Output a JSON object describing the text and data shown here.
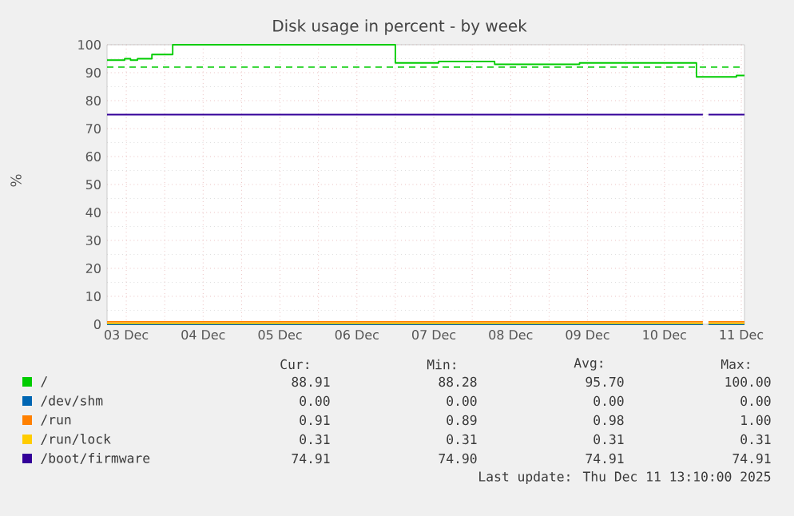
{
  "chart_data": {
    "type": "step",
    "title": "Disk usage in percent - by week",
    "ylabel": "%",
    "xlim": [
      "2025-12-03T06:00",
      "2025-12-11T13:00"
    ],
    "xticks": [
      {
        "value": "2025-12-03T12:00",
        "label": "03 Dec"
      },
      {
        "value": "2025-12-04T00:00",
        "label": null
      },
      {
        "value": "2025-12-04T12:00",
        "label": "04 Dec"
      },
      {
        "value": "2025-12-05T00:00",
        "label": null
      },
      {
        "value": "2025-12-05T12:00",
        "label": "05 Dec"
      },
      {
        "value": "2025-12-06T00:00",
        "label": null
      },
      {
        "value": "2025-12-06T12:00",
        "label": "06 Dec"
      },
      {
        "value": "2025-12-07T00:00",
        "label": null
      },
      {
        "value": "2025-12-07T12:00",
        "label": "07 Dec"
      },
      {
        "value": "2025-12-08T00:00",
        "label": null
      },
      {
        "value": "2025-12-08T12:00",
        "label": "08 Dec"
      },
      {
        "value": "2025-12-09T00:00",
        "label": null
      },
      {
        "value": "2025-12-09T12:00",
        "label": "09 Dec"
      },
      {
        "value": "2025-12-10T00:00",
        "label": null
      },
      {
        "value": "2025-12-10T12:00",
        "label": "10 Dec"
      },
      {
        "value": "2025-12-11T00:00",
        "label": null
      },
      {
        "value": "2025-12-11T12:00",
        "label": "11 Dec"
      }
    ],
    "ylim": [
      0,
      100
    ],
    "yticks": [
      0,
      10,
      20,
      30,
      40,
      50,
      60,
      70,
      80,
      90,
      100
    ],
    "grid": true,
    "legend": "bottom",
    "marker": "none",
    "series": [
      {
        "name": "/",
        "color": "#00cc00",
        "x": [
          "2025-12-03T06:00",
          "2025-12-03T11:30",
          "2025-12-03T13:20",
          "2025-12-03T15:30",
          "2025-12-03T20:00",
          "2025-12-04T02:30",
          "2025-12-07T00:00",
          "2025-12-07T13:30",
          "2025-12-08T07:00",
          "2025-12-09T09:30",
          "2025-12-10T22:00",
          "2025-12-11T10:30",
          "2025-12-11T13:00"
        ],
        "values": [
          94.5,
          95,
          94.5,
          95,
          96.5,
          100,
          93.5,
          94,
          93,
          93.5,
          88.5,
          89,
          89
        ]
      },
      {
        "name": "/dev/shm",
        "color": "#0066b3",
        "x": [
          "2025-12-03T06:00",
          "2025-12-11T00:00",
          "2025-12-11T01:00",
          "2025-12-11T01:45",
          "2025-12-11T13:00"
        ],
        "values": [
          0,
          0,
          null,
          0,
          0
        ]
      },
      {
        "name": "/run",
        "color": "#ff8000",
        "x": [
          "2025-12-03T06:00",
          "2025-12-11T00:00",
          "2025-12-11T01:00",
          "2025-12-11T01:45",
          "2025-12-11T13:00"
        ],
        "values": [
          0.9,
          0.9,
          null,
          0.9,
          0.9
        ]
      },
      {
        "name": "/run/lock",
        "color": "#ffcc00",
        "x": [
          "2025-12-03T06:00",
          "2025-12-11T00:00",
          "2025-12-11T01:00",
          "2025-12-11T01:45",
          "2025-12-11T13:00"
        ],
        "values": [
          0.3,
          0.3,
          null,
          0.3,
          0.3
        ]
      },
      {
        "name": "/boot/firmware",
        "color": "#330099",
        "x": [
          "2025-12-03T06:00",
          "2025-12-11T00:00",
          "2025-12-11T01:00",
          "2025-12-11T01:45",
          "2025-12-11T13:00"
        ],
        "values": [
          75,
          75,
          null,
          75,
          75
        ]
      }
    ],
    "ref_lines": [
      {
        "axis": "y",
        "value": 92,
        "color": "#00cc00",
        "line_style": "dashed"
      }
    ],
    "annotations": [
      "Cur:",
      "Min:",
      "Avg:",
      "Max:",
      "88.91",
      "88.28",
      "95.70",
      "100.00",
      "0.00",
      "0.00",
      "0.00",
      "0.00",
      "0.91",
      "0.89",
      "0.98",
      "1.00",
      "0.31",
      "0.31",
      "0.31",
      "0.31",
      "74.91",
      "74.90",
      "74.91",
      "74.91",
      "Last update: Thu Dec 11 13:10:00 2025"
    ]
  }
}
